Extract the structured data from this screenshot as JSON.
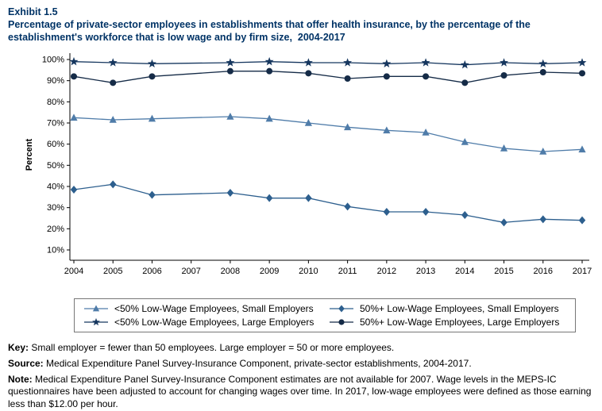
{
  "header": {
    "exhibit": "Exhibit 1.5",
    "title": "Percentage of private-sector employees in establishments that offer health insurance, by the percentage of the establishment's workforce that is low wage and by firm size,  2004-2017"
  },
  "chart_data": {
    "type": "line",
    "x": [
      2004,
      2005,
      2006,
      2007,
      2008,
      2009,
      2010,
      2011,
      2012,
      2013,
      2014,
      2015,
      2016,
      2017
    ],
    "xticks": [
      "2004",
      "2005",
      "2006",
      "2007",
      "2008",
      "2009",
      "2010",
      "2011",
      "2012",
      "2013",
      "2014",
      "2015",
      "2016",
      "2017"
    ],
    "missing_years": [
      2007
    ],
    "ylabel": "Percent",
    "ylim": [
      10,
      100
    ],
    "ytick_step": 10,
    "yticks": [
      "10%",
      "20%",
      "30%",
      "40%",
      "50%",
      "60%",
      "70%",
      "80%",
      "90%",
      "100%"
    ],
    "grid": false,
    "legend_position": "bottom",
    "series": [
      {
        "name": "<50% Low-Wage Employees, Small Employers",
        "marker": "triangle",
        "color": "#4f7ca9",
        "values": [
          72.5,
          71.5,
          72,
          null,
          73,
          72,
          70,
          68,
          66.5,
          65.5,
          61,
          58,
          56.5,
          57.5
        ]
      },
      {
        "name": "50%+ Low-Wage Employees, Small Employers",
        "marker": "diamond",
        "color": "#2d5f8e",
        "values": [
          38.5,
          41,
          36,
          null,
          37,
          34.5,
          34.5,
          30.5,
          28,
          28,
          26.5,
          23,
          24.5,
          24
        ]
      },
      {
        "name": "<50% Low-Wage Employees, Large Employers",
        "marker": "star",
        "color": "#16375f",
        "values": [
          99,
          98.5,
          98,
          null,
          98.5,
          99,
          98.5,
          98.5,
          98,
          98.5,
          97.5,
          98.5,
          98,
          98.5
        ]
      },
      {
        "name": "50%+ Low-Wage Employees, Large Employers",
        "marker": "circle",
        "color": "#152b47",
        "values": [
          92,
          89,
          92,
          null,
          94.5,
          94.5,
          93.5,
          91,
          92,
          92,
          89,
          92.5,
          94,
          93.5
        ]
      }
    ]
  },
  "footer": {
    "key_label": "Key:",
    "key_text": "Small employer = fewer than 50 employees. Large employer = 50 or more employees.",
    "source_label": "Source:",
    "source_text": "Medical Expenditure Panel Survey-Insurance Component, private-sector establishments, 2004-2017.",
    "note_label": "Note:",
    "note_text": "Medical Expenditure Panel Survey-Insurance Component estimates are not available for 2007. Wage levels in the MEPS-IC questionnaires have been adjusted to account for changing wages over time. In 2017, low-wage employees were defined as those earning less than $12.00 per hour."
  },
  "colors": {
    "title": "#003366",
    "axis": "#000000"
  }
}
